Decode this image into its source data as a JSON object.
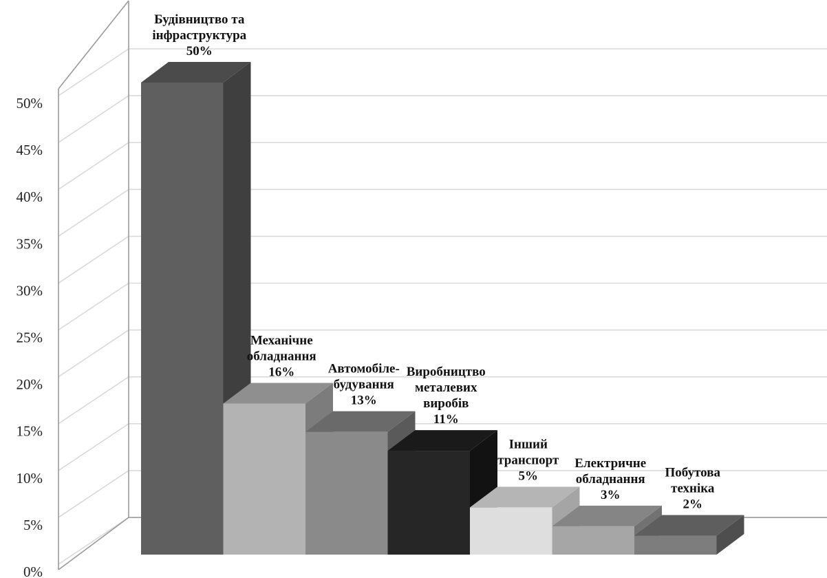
{
  "chart_data": {
    "type": "bar",
    "title": "",
    "xlabel": "",
    "ylabel": "",
    "ylim": [
      0,
      50
    ],
    "yticks": [
      "0%",
      "5%",
      "10%",
      "15%",
      "20%",
      "25%",
      "30%",
      "35%",
      "40%",
      "45%",
      "50%"
    ],
    "grid": true,
    "three_d": true,
    "categories": [
      [
        "Будівництво та",
        "інфраструктура"
      ],
      [
        "Механічне",
        "обладнання"
      ],
      [
        "Автомобіле-",
        "будування"
      ],
      [
        "Виробництво",
        "металевих",
        "виробів"
      ],
      [
        "Інший",
        "транспорт"
      ],
      [
        "Електричне",
        "обладнання"
      ],
      [
        "Побутова",
        "техніка"
      ]
    ],
    "values": [
      50,
      16,
      13,
      11,
      5,
      3,
      2
    ],
    "value_labels": [
      "50%",
      "16%",
      "13%",
      "11%",
      "5%",
      "3%",
      "2%"
    ],
    "colors": [
      {
        "front": "#5f5f5f",
        "side": "#3f3f3f",
        "top": "#4b4b4b"
      },
      {
        "front": "#b3b3b3",
        "side": "#7c7c7c",
        "top": "#8f8f8f"
      },
      {
        "front": "#8a8a8a",
        "side": "#5a5a5a",
        "top": "#6a6a6a"
      },
      {
        "front": "#262626",
        "side": "#121212",
        "top": "#1a1a1a"
      },
      {
        "front": "#dedede",
        "side": "#a5a5a5",
        "top": "#b5b5b5"
      },
      {
        "front": "#a6a6a6",
        "side": "#727272",
        "top": "#858585"
      },
      {
        "front": "#7d7d7d",
        "side": "#4e4e4e",
        "top": "#5e5e5e"
      }
    ],
    "grid_color": "#d9d9d9",
    "axis_color": "#9a9a9a"
  }
}
